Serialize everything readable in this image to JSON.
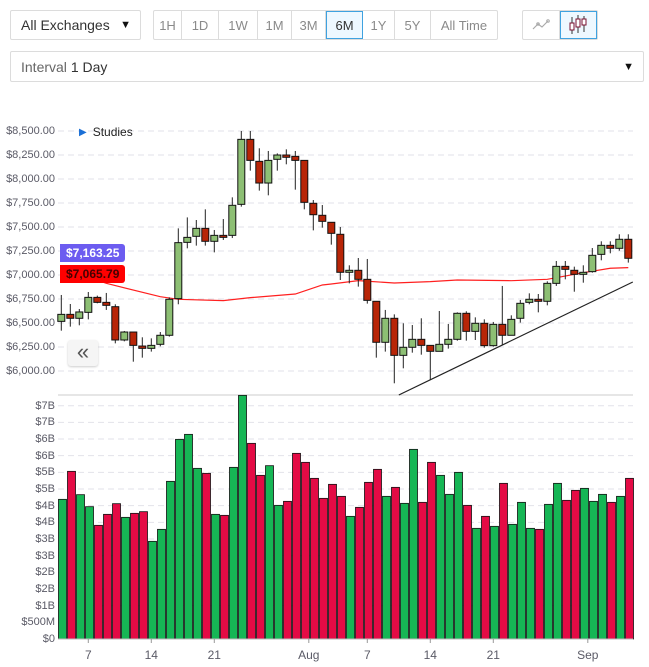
{
  "toolbar": {
    "exchange": "All Exchanges",
    "ranges": [
      {
        "label": "1H",
        "active": false
      },
      {
        "label": "1D",
        "active": false
      },
      {
        "label": "1W",
        "active": false
      },
      {
        "label": "1M",
        "active": false
      },
      {
        "label": "3M",
        "active": false
      },
      {
        "label": "6M",
        "active": true
      },
      {
        "label": "1Y",
        "active": false
      },
      {
        "label": "5Y",
        "active": false
      },
      {
        "label": "All Time",
        "active": false
      }
    ],
    "chart_types": [
      {
        "icon": "line-chart-icon",
        "active": false
      },
      {
        "icon": "candlestick-icon",
        "active": true
      }
    ],
    "interval_prefix": "Interval",
    "interval_value": "1 Day"
  },
  "studies_label": "Studies",
  "collapse_label": "«",
  "colors": {
    "up": "#8dbf74",
    "down": "#b82507",
    "vol_up": "#16b655",
    "vol_down": "#e40b45",
    "ma": "#ff2020",
    "price_tag": "#6c5cf0",
    "ma_tag": "#ff0000",
    "active_border": "#3fa2e0"
  },
  "chart_data": [
    {
      "type": "candlestick",
      "price_tag": "$7,163.25",
      "ma_tag": "$7,065.79",
      "ylim": [
        5750,
        8620
      ],
      "yticks": [
        {
          "value": 8500,
          "label": "$8,500.00"
        },
        {
          "value": 8250,
          "label": "$8,250.00"
        },
        {
          "value": 8000,
          "label": "$8,000.00"
        },
        {
          "value": 7750,
          "label": "$7,750.00"
        },
        {
          "value": 7500,
          "label": "$7,500.00"
        },
        {
          "value": 7250,
          "label": "$7,250.00"
        },
        {
          "value": 7000,
          "label": "$7,000.00"
        },
        {
          "value": 6750,
          "label": "$6,750.00"
        },
        {
          "value": 6500,
          "label": "$6,500.00"
        },
        {
          "value": 6250,
          "label": "$6,250.00"
        },
        {
          "value": 6000,
          "label": "$6,000.00"
        }
      ],
      "grid": true,
      "ohlc": [
        [
          6517,
          6792,
          6420,
          6590
        ],
        [
          6590,
          6698,
          6462,
          6549
        ],
        [
          6549,
          6646,
          6476,
          6615
        ],
        [
          6611,
          6823,
          6538,
          6767
        ],
        [
          6767,
          6785,
          6705,
          6715
        ],
        [
          6715,
          6813,
          6636,
          6684
        ],
        [
          6670,
          6695,
          6288,
          6323
        ],
        [
          6323,
          6417,
          6309,
          6406
        ],
        [
          6406,
          6406,
          6097,
          6267
        ],
        [
          6260,
          6351,
          6139,
          6236
        ],
        [
          6236,
          6340,
          6202,
          6267
        ],
        [
          6278,
          6406,
          6257,
          6372
        ],
        [
          6372,
          6767,
          6358,
          6747
        ],
        [
          6754,
          7486,
          6695,
          7337
        ],
        [
          7340,
          7600,
          7278,
          7392
        ],
        [
          7403,
          7573,
          7306,
          7486
        ],
        [
          7486,
          7684,
          7306,
          7351
        ],
        [
          7351,
          7469,
          7236,
          7413
        ],
        [
          7413,
          7583,
          7365,
          7392
        ],
        [
          7413,
          7809,
          7385,
          7726
        ],
        [
          7736,
          8500,
          7712,
          8413
        ],
        [
          8413,
          8500,
          8087,
          8194
        ],
        [
          8184,
          8320,
          7879,
          7958
        ],
        [
          7958,
          8292,
          7830,
          8194
        ],
        [
          8205,
          8267,
          8087,
          8250
        ],
        [
          8250,
          8309,
          8153,
          8226
        ],
        [
          8236,
          8292,
          7889,
          8194
        ],
        [
          8194,
          8194,
          7684,
          7757
        ],
        [
          7747,
          7781,
          7465,
          7628
        ],
        [
          7622,
          7729,
          7493,
          7559
        ],
        [
          7549,
          7549,
          7316,
          7434
        ],
        [
          7424,
          7500,
          6948,
          7028
        ],
        [
          7028,
          7101,
          6913,
          7049
        ],
        [
          7049,
          7177,
          6879,
          6955
        ],
        [
          6955,
          7167,
          6702,
          6736
        ],
        [
          6726,
          6726,
          6139,
          6299
        ],
        [
          6299,
          6636,
          6202,
          6549
        ],
        [
          6549,
          6590,
          5872,
          6163
        ],
        [
          6163,
          6497,
          6028,
          6247
        ],
        [
          6247,
          6479,
          6191,
          6330
        ],
        [
          6330,
          6549,
          6170,
          6267
        ],
        [
          6267,
          6267,
          5906,
          6205
        ],
        [
          6205,
          6625,
          6205,
          6278
        ],
        [
          6278,
          6490,
          6233,
          6330
        ],
        [
          6330,
          6611,
          6316,
          6601
        ],
        [
          6601,
          6622,
          6316,
          6413
        ],
        [
          6413,
          6559,
          6323,
          6497
        ],
        [
          6497,
          6538,
          6243,
          6264
        ],
        [
          6264,
          6511,
          6254,
          6486
        ],
        [
          6486,
          6886,
          6267,
          6372
        ],
        [
          6372,
          6580,
          6372,
          6538
        ],
        [
          6549,
          6740,
          6504,
          6705
        ],
        [
          6715,
          6809,
          6695,
          6747
        ],
        [
          6747,
          6802,
          6611,
          6726
        ],
        [
          6726,
          6934,
          6684,
          6913
        ],
        [
          6913,
          7146,
          6886,
          7090
        ],
        [
          7090,
          7146,
          6955,
          7059
        ],
        [
          7049,
          7087,
          6826,
          7007
        ],
        [
          7007,
          7101,
          6920,
          7028
        ],
        [
          7035,
          7281,
          7024,
          7205
        ],
        [
          7215,
          7351,
          7153,
          7309
        ],
        [
          7309,
          7351,
          7226,
          7278
        ],
        [
          7278,
          7424,
          7253,
          7372
        ],
        [
          7372,
          7424,
          7129,
          7174
        ]
      ],
      "moving_average": [
        [
          0,
          7077
        ],
        [
          5,
          6913
        ],
        [
          11,
          6774
        ],
        [
          13,
          6747
        ],
        [
          18,
          6733
        ],
        [
          21,
          6764
        ],
        [
          26,
          6802
        ],
        [
          29,
          6896
        ],
        [
          30,
          6906
        ],
        [
          33,
          6941
        ],
        [
          37,
          6917
        ],
        [
          41,
          6931
        ],
        [
          44,
          6948
        ],
        [
          50,
          6941
        ],
        [
          54,
          6955
        ],
        [
          55,
          6972
        ],
        [
          58,
          7024
        ],
        [
          61,
          7070
        ],
        [
          63,
          7077
        ]
      ],
      "trendline": [
        [
          37.5,
          5750
        ],
        [
          63.5,
          6927
        ]
      ]
    },
    {
      "type": "bar",
      "ylim": [
        0,
        7.32
      ],
      "yticks": [
        {
          "value": 0,
          "label": "$0"
        },
        {
          "value": 0.5,
          "label": "$500M"
        },
        {
          "value": 1,
          "label": "$1B"
        },
        {
          "value": 1.5,
          "label": "$2B"
        },
        {
          "value": 2,
          "label": "$2B"
        },
        {
          "value": 2.5,
          "label": "$3B"
        },
        {
          "value": 3,
          "label": "$3B"
        },
        {
          "value": 3.5,
          "label": "$4B"
        },
        {
          "value": 4,
          "label": "$4B"
        },
        {
          "value": 4.5,
          "label": "$5B"
        },
        {
          "value": 5,
          "label": "$5B"
        },
        {
          "value": 5.5,
          "label": "$6B"
        },
        {
          "value": 6,
          "label": "$6B"
        },
        {
          "value": 6.5,
          "label": "$7B"
        },
        {
          "value": 7,
          "label": "$7B"
        }
      ],
      "unit": "billion USD",
      "values": [
        4.19,
        5.03,
        4.33,
        3.97,
        3.41,
        3.74,
        4.06,
        3.65,
        3.77,
        3.82,
        2.93,
        3.29,
        4.73,
        5.99,
        6.14,
        5.12,
        4.97,
        3.74,
        3.71,
        5.15,
        7.31,
        5.87,
        4.91,
        5.2,
        4.01,
        4.13,
        5.57,
        5.3,
        4.82,
        4.22,
        4.64,
        4.28,
        3.68,
        3.95,
        4.7,
        5.09,
        4.28,
        4.55,
        4.07,
        5.69,
        4.1,
        5.3,
        4.91,
        4.34,
        5.0,
        4.01,
        3.32,
        3.68,
        3.38,
        4.67,
        3.44,
        4.1,
        3.32,
        3.29,
        4.04,
        4.67,
        4.16,
        4.46,
        4.52,
        4.13,
        4.34,
        4.1,
        4.28,
        4.82
      ],
      "xticks": [
        {
          "index": 3,
          "label": "7"
        },
        {
          "index": 10,
          "label": "14"
        },
        {
          "index": 17,
          "label": "21"
        },
        {
          "index": 27.5,
          "label": "Aug"
        },
        {
          "index": 34,
          "label": "7"
        },
        {
          "index": 41,
          "label": "14"
        },
        {
          "index": 48,
          "label": "21"
        },
        {
          "index": 58.5,
          "label": "Sep"
        }
      ]
    }
  ]
}
